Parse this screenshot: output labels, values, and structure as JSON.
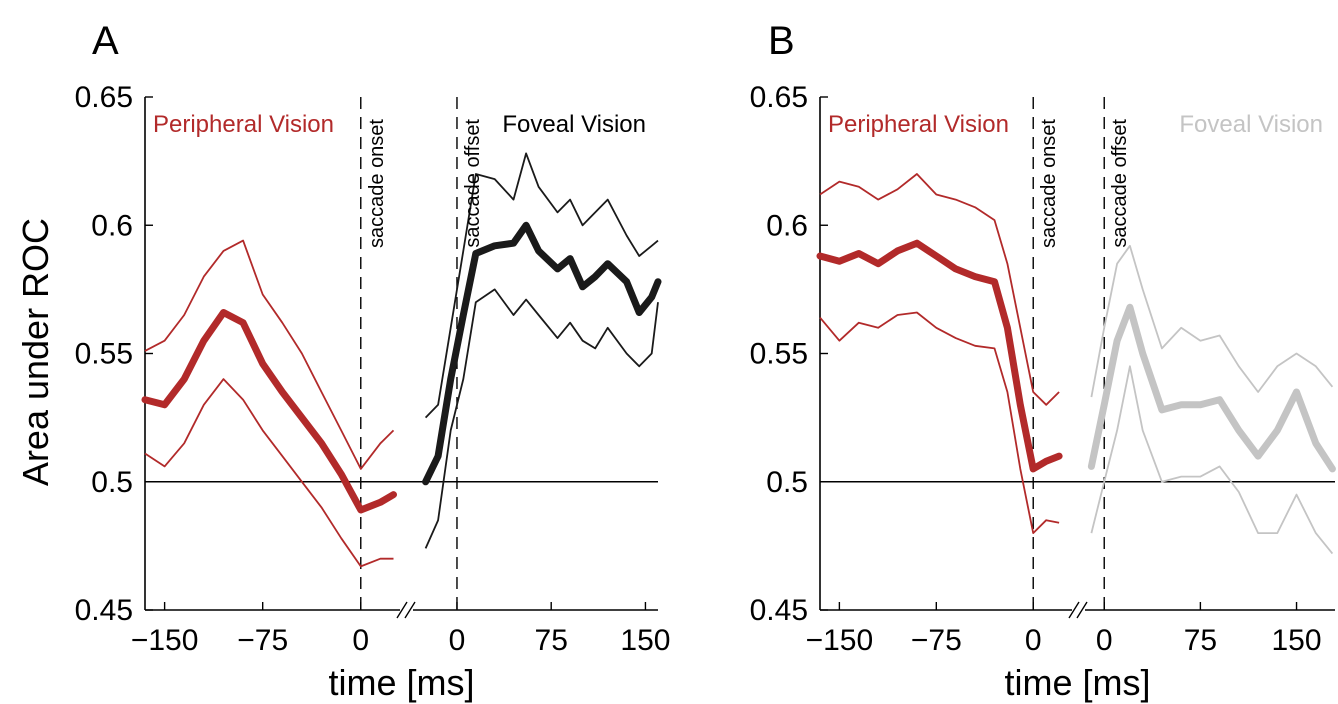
{
  "figure": {
    "ylabel": "Area under ROC",
    "xlabel": "time [ms]"
  },
  "colors": {
    "peripheral": "#b22a2a",
    "foveal": "#1a1a1a",
    "foveal_faded": "#c4c4c4",
    "axis": "#000000"
  },
  "chart_data": [
    {
      "type": "line",
      "panel": "A",
      "ylabel": "Area under ROC",
      "xlabel": "time [ms]",
      "ylim": [
        0.45,
        0.65
      ],
      "yticks": [
        "0.45",
        "0.5",
        "0.55",
        "0.6",
        "0.65"
      ],
      "ytick_values": [
        0.45,
        0.5,
        0.55,
        0.6,
        0.65
      ],
      "baseline": 0.5,
      "annotations": {
        "left_region": "Peripheral Vision",
        "right_region": "Foveal Vision",
        "onset": "saccade onset",
        "offset": "saccade offset"
      },
      "segments": [
        {
          "name": "Peripheral Vision",
          "color": "peripheral",
          "xlim": [
            -165,
            30
          ],
          "xticks": [
            "−150",
            "−75",
            "0"
          ],
          "xtick_values": [
            -150,
            -75,
            0
          ],
          "event_line": 0,
          "x": [
            -165,
            -150,
            -135,
            -120,
            -105,
            -90,
            -75,
            -60,
            -45,
            -30,
            -15,
            0,
            15,
            25
          ],
          "mean": [
            0.532,
            0.53,
            0.54,
            0.555,
            0.566,
            0.562,
            0.546,
            0.535,
            0.525,
            0.515,
            0.503,
            0.489,
            0.492,
            0.495
          ],
          "upper": [
            0.551,
            0.555,
            0.565,
            0.58,
            0.59,
            0.594,
            0.573,
            0.562,
            0.55,
            0.535,
            0.52,
            0.505,
            0.515,
            0.52
          ],
          "lower": [
            0.511,
            0.506,
            0.515,
            0.53,
            0.54,
            0.532,
            0.52,
            0.51,
            0.5,
            0.49,
            0.478,
            0.467,
            0.47,
            0.47
          ]
        },
        {
          "name": "Foveal Vision",
          "color": "foveal",
          "xlim": [
            -35,
            160
          ],
          "xticks": [
            "0",
            "75",
            "150"
          ],
          "xtick_values": [
            0,
            75,
            150
          ],
          "event_line": 0,
          "x": [
            -25,
            -15,
            -5,
            5,
            15,
            30,
            45,
            55,
            65,
            80,
            90,
            100,
            110,
            120,
            135,
            145,
            155,
            160
          ],
          "mean": [
            0.5,
            0.51,
            0.54,
            0.565,
            0.589,
            0.592,
            0.593,
            0.6,
            0.59,
            0.583,
            0.587,
            0.576,
            0.58,
            0.585,
            0.578,
            0.566,
            0.572,
            0.578
          ],
          "upper": [
            0.525,
            0.53,
            0.56,
            0.59,
            0.62,
            0.618,
            0.61,
            0.628,
            0.615,
            0.605,
            0.61,
            0.6,
            0.605,
            0.61,
            0.596,
            0.588,
            0.592,
            0.594
          ],
          "lower": [
            0.474,
            0.485,
            0.52,
            0.54,
            0.57,
            0.575,
            0.565,
            0.571,
            0.565,
            0.556,
            0.562,
            0.555,
            0.552,
            0.56,
            0.55,
            0.545,
            0.55,
            0.57
          ]
        }
      ]
    },
    {
      "type": "line",
      "panel": "B",
      "ylabel": "",
      "xlabel": "time [ms]",
      "ylim": [
        0.45,
        0.65
      ],
      "yticks": [
        "0.45",
        "0.5",
        "0.55",
        "0.6",
        "0.65"
      ],
      "ytick_values": [
        0.45,
        0.5,
        0.55,
        0.6,
        0.65
      ],
      "baseline": 0.5,
      "annotations": {
        "left_region": "Peripheral Vision",
        "right_region": "Foveal Vision",
        "onset": "saccade onset",
        "offset": "saccade offset"
      },
      "segments": [
        {
          "name": "Peripheral Vision",
          "color": "peripheral",
          "xlim": [
            -165,
            30
          ],
          "xticks": [
            "−150",
            "−75",
            "0"
          ],
          "xtick_values": [
            -150,
            -75,
            0
          ],
          "event_line": 0,
          "x": [
            -165,
            -150,
            -135,
            -120,
            -105,
            -90,
            -75,
            -60,
            -45,
            -30,
            -20,
            -10,
            0,
            10,
            20
          ],
          "mean": [
            0.588,
            0.586,
            0.589,
            0.585,
            0.59,
            0.593,
            0.588,
            0.583,
            0.58,
            0.578,
            0.56,
            0.53,
            0.505,
            0.508,
            0.51
          ],
          "upper": [
            0.612,
            0.617,
            0.615,
            0.61,
            0.614,
            0.62,
            0.612,
            0.61,
            0.607,
            0.602,
            0.585,
            0.56,
            0.535,
            0.53,
            0.535
          ],
          "lower": [
            0.564,
            0.555,
            0.562,
            0.56,
            0.565,
            0.566,
            0.56,
            0.556,
            0.553,
            0.552,
            0.535,
            0.505,
            0.48,
            0.485,
            0.484
          ]
        },
        {
          "name": "Foveal Vision",
          "color": "foveal_faded",
          "xlim": [
            -15,
            180
          ],
          "xticks": [
            "0",
            "75",
            "150"
          ],
          "xtick_values": [
            0,
            75,
            150
          ],
          "event_line": 0,
          "x": [
            -10,
            0,
            10,
            20,
            30,
            45,
            60,
            75,
            90,
            105,
            120,
            135,
            150,
            165,
            178
          ],
          "mean": [
            0.506,
            0.53,
            0.555,
            0.568,
            0.55,
            0.528,
            0.53,
            0.53,
            0.532,
            0.52,
            0.51,
            0.52,
            0.535,
            0.515,
            0.505
          ],
          "upper": [
            0.533,
            0.56,
            0.585,
            0.592,
            0.575,
            0.552,
            0.56,
            0.555,
            0.557,
            0.545,
            0.535,
            0.545,
            0.55,
            0.545,
            0.537
          ],
          "lower": [
            0.48,
            0.5,
            0.52,
            0.545,
            0.52,
            0.5,
            0.502,
            0.502,
            0.506,
            0.496,
            0.48,
            0.48,
            0.495,
            0.48,
            0.472
          ]
        }
      ]
    }
  ]
}
